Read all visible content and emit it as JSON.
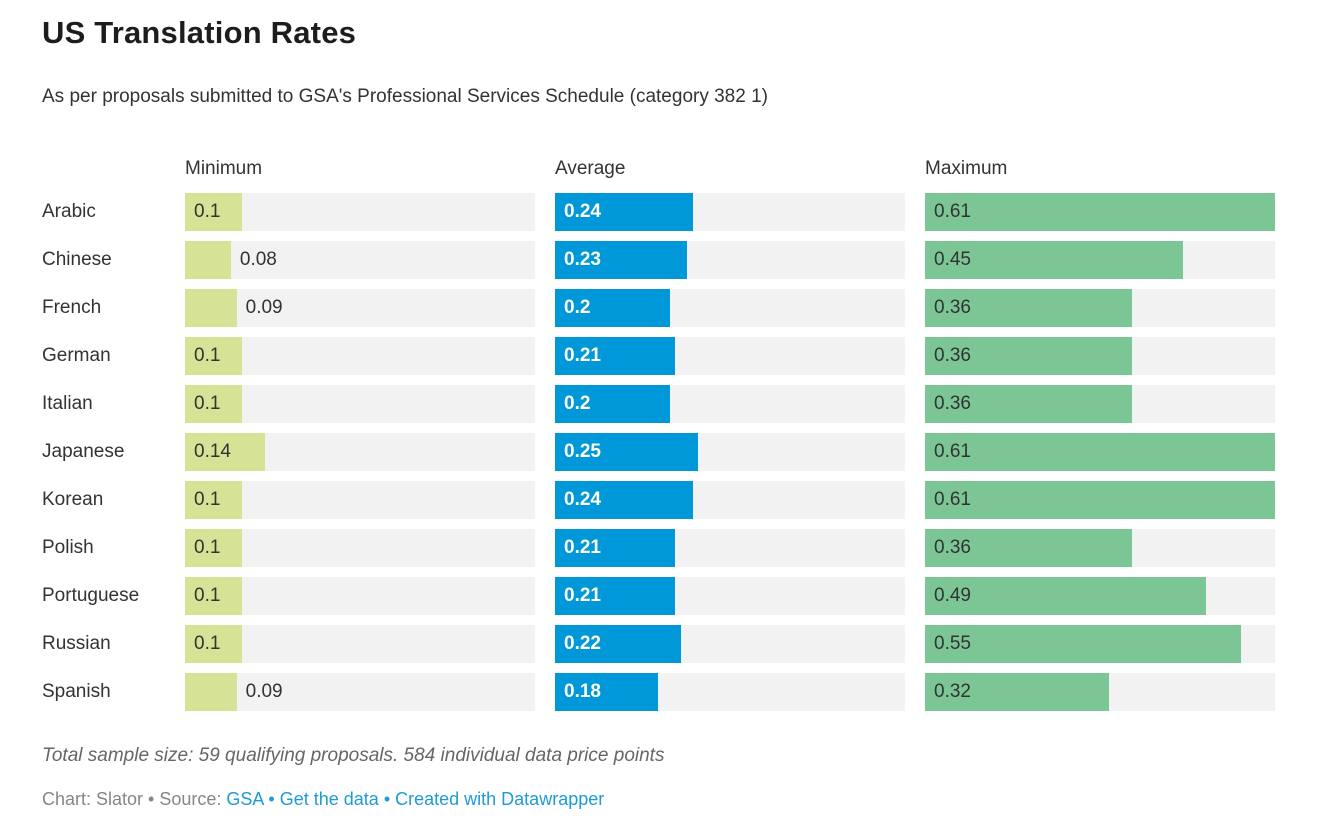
{
  "chart_data": {
    "type": "bar",
    "layout": "split-columns",
    "title": "US Translation Rates",
    "subtitle": "As per proposals submitted to GSA's Professional Services Schedule (category 382 1)",
    "categories": [
      "Arabic",
      "Chinese",
      "French",
      "German",
      "Italian",
      "Japanese",
      "Korean",
      "Polish",
      "Portuguese",
      "Russian",
      "Spanish"
    ],
    "series": [
      {
        "name": "Minimum",
        "color": "#d6e295",
        "label_color": "#333333",
        "label_bold": false,
        "values": [
          0.1,
          0.08,
          0.09,
          0.1,
          0.1,
          0.14,
          0.1,
          0.1,
          0.1,
          0.1,
          0.09
        ]
      },
      {
        "name": "Average",
        "color": "#0098d9",
        "label_color": "#ffffff",
        "label_bold": true,
        "values": [
          0.24,
          0.23,
          0.2,
          0.21,
          0.2,
          0.25,
          0.24,
          0.21,
          0.21,
          0.22,
          0.18
        ]
      },
      {
        "name": "Maximum",
        "color": "#7bc694",
        "label_color": "#333333",
        "label_bold": false,
        "values": [
          0.61,
          0.45,
          0.36,
          0.36,
          0.36,
          0.61,
          0.61,
          0.36,
          0.49,
          0.55,
          0.32
        ]
      }
    ],
    "xmax": 0.61,
    "track_color": "#f2f2f2",
    "grid": false,
    "legend_position": "column-headers"
  },
  "footer": {
    "note": "Total sample size: 59 qualifying proposals. 584 individual data price points",
    "byline_prefix": "Chart: Slator • Source: ",
    "separator": " • ",
    "links": [
      "GSA",
      "Get the data",
      "Created with Datawrapper"
    ],
    "link_color": "#1d9bd8"
  }
}
